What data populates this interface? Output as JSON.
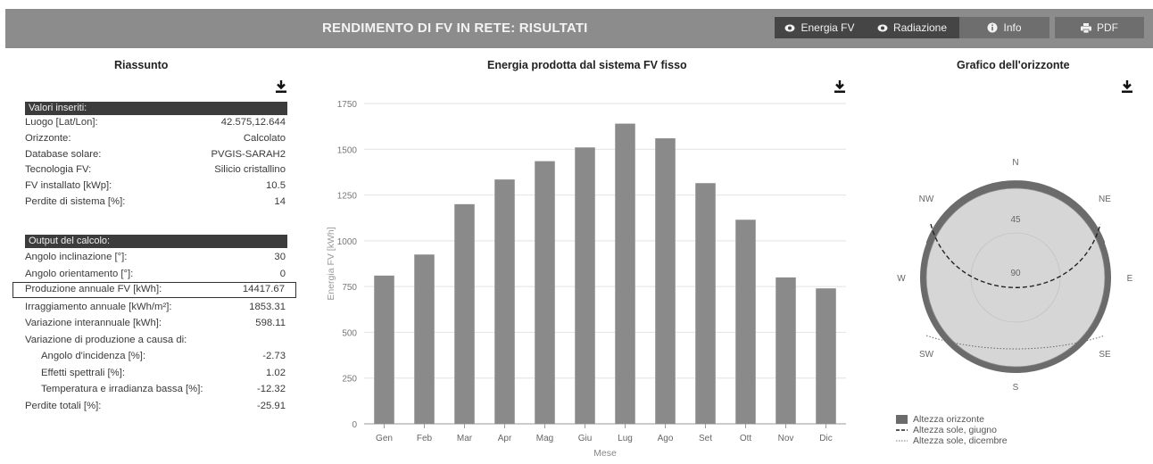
{
  "topbar": {
    "title": "RENDIMENTO DI FV IN RETE: RISULTATI",
    "buttons": [
      {
        "label": "Energia FV",
        "icon": "eye-icon"
      },
      {
        "label": "Radiazione",
        "icon": "eye-icon"
      },
      {
        "label": "Info",
        "icon": "info-icon"
      },
      {
        "label": "PDF",
        "icon": "print-icon"
      }
    ]
  },
  "summary": {
    "title": "Riassunto",
    "inputs_header": "Valori inseriti:",
    "inputs": [
      {
        "k": "Luogo [Lat/Lon]:",
        "v": "42.575,12.644"
      },
      {
        "k": "Orizzonte:",
        "v": "Calcolato"
      },
      {
        "k": "Database solare:",
        "v": "PVGIS-SARAH2"
      },
      {
        "k": "Tecnologia FV:",
        "v": "Silicio cristallino"
      },
      {
        "k": "FV installato [kWp]:",
        "v": "10.5"
      },
      {
        "k": "Perdite di sistema [%]:",
        "v": "14"
      }
    ],
    "outputs_header": "Output del calcolo:",
    "outputs": [
      {
        "k": "Angolo inclinazione [°]:",
        "v": "30"
      },
      {
        "k": "Angolo orientamento [°]:",
        "v": "0"
      },
      {
        "k": "Produzione annuale FV [kWh]:",
        "v": "14417.67"
      },
      {
        "k": "Irraggiamento annuale [kWh/m²]:",
        "v": "1853.31"
      },
      {
        "k": "Variazione interannuale [kWh]:",
        "v": "598.11"
      },
      {
        "k": "Variazione di produzione a causa di:",
        "v": ""
      },
      {
        "k": "Angolo d'incidenza [%]:",
        "v": "-2.73"
      },
      {
        "k": "Effetti spettrali [%]:",
        "v": "1.02"
      },
      {
        "k": "Temperatura e irradianza bassa [%]:",
        "v": "-12.32"
      },
      {
        "k": "Perdite totali [%]:",
        "v": "-25.91"
      }
    ]
  },
  "chart_title": "Energia prodotta dal sistema FV fisso",
  "chart_data": {
    "type": "bar",
    "title": "Energia prodotta dal sistema FV fisso",
    "xlabel": "Mese",
    "ylabel": "Energia FV [kWh]",
    "categories": [
      "Gen",
      "Feb",
      "Mar",
      "Apr",
      "Mag",
      "Giu",
      "Lug",
      "Ago",
      "Set",
      "Ott",
      "Nov",
      "Dic"
    ],
    "values": [
      810,
      925,
      1200,
      1335,
      1435,
      1510,
      1640,
      1560,
      1315,
      1115,
      800,
      740
    ],
    "ylim": [
      0,
      1750
    ],
    "yticks": [
      0,
      250,
      500,
      750,
      1000,
      1250,
      1500,
      1750
    ],
    "grid": true,
    "color": "#8a8a8a"
  },
  "horizon": {
    "title": "Grafico dell'orizzonte",
    "directions": {
      "n": "N",
      "ne": "NE",
      "e": "E",
      "se": "SE",
      "s": "S",
      "sw": "SW",
      "w": "W",
      "nw": "NW"
    },
    "rings": {
      "r45": "45",
      "r90": "90"
    },
    "legend": [
      {
        "label": "Altezza orizzonte",
        "color": "#6b6b6b"
      },
      {
        "label": "Altezza sole, giugno",
        "color": "#222222"
      },
      {
        "label": "Altezza sole, dicembre",
        "color": "#777777"
      }
    ]
  }
}
